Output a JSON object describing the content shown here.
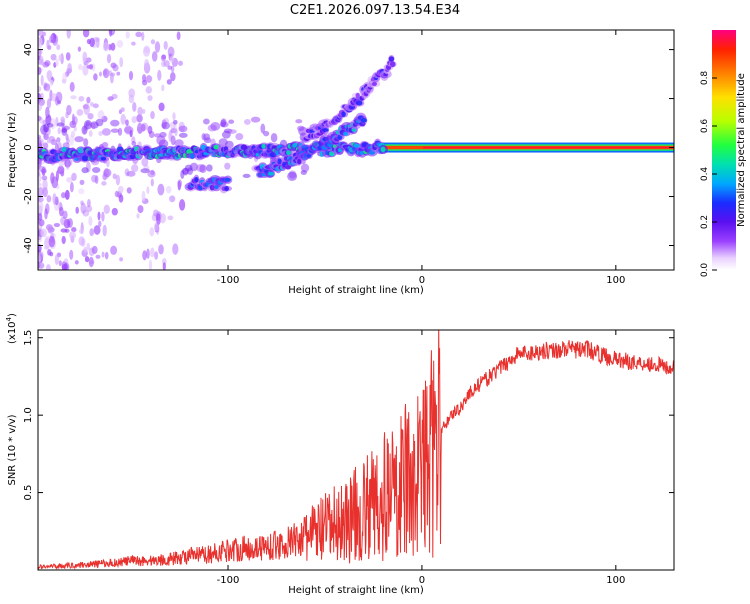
{
  "title": "C2E1.2026.097.13.54.E34",
  "chart_data": [
    {
      "type": "heatmap",
      "name": "spectrogram",
      "xlabel": "Height of straight line (km)",
      "ylabel": "Frequency (Hz)",
      "xlim": [
        -198,
        130
      ],
      "ylim": [
        -50,
        48
      ],
      "xticks": [
        -100,
        0,
        100
      ],
      "yticks": [
        -40,
        -20,
        0,
        20,
        40
      ],
      "colorbar": {
        "label": "Normalized spectral amplitude",
        "range": [
          0,
          1
        ],
        "ticks": [
          0.0,
          0.2,
          0.4,
          0.6,
          0.8
        ],
        "tick_labels": [
          "0.0",
          "0.2",
          "0.4",
          "0.6",
          "0.8"
        ]
      },
      "features": [
        {
          "name": "carrier-line",
          "x": [
            -20,
            130
          ],
          "y": 0,
          "amplitude": 0.95
        },
        {
          "name": "main-branch",
          "x": [
            -198,
            -20
          ],
          "y": [
            -3,
            0
          ],
          "amplitude": 0.35
        },
        {
          "name": "rising-branch-upper",
          "x": [
            -60,
            -15
          ],
          "y": [
            5,
            35
          ],
          "amplitude": 0.2
        },
        {
          "name": "rising-branch-lower",
          "x": [
            -85,
            -30
          ],
          "y": [
            -10,
            12
          ],
          "amplitude": 0.3
        },
        {
          "name": "low-branch",
          "x": [
            -120,
            -100
          ],
          "y": -15,
          "amplitude": 0.25
        }
      ]
    },
    {
      "type": "line",
      "name": "snr",
      "xlabel": "Height of straight line (km)",
      "ylabel": "SNR (10 * v/v)",
      "y_multiplier": "(x10",
      "y_multiplier_exp": "4",
      "y_multiplier_close": ")",
      "xlim": [
        -198,
        130
      ],
      "ylim": [
        0,
        15500
      ],
      "xticks": [
        -100,
        0,
        100
      ],
      "yticks": [
        5000,
        10000,
        15000
      ],
      "ytick_labels": [
        "0.5",
        "1.0",
        "1.5"
      ],
      "color": "#e8302d",
      "series": [
        {
          "name": "SNR",
          "x": [
            -198,
            -180,
            -160,
            -150,
            -140,
            -130,
            -120,
            -110,
            -100,
            -90,
            -80,
            -70,
            -60,
            -50,
            -40,
            -30,
            -25,
            -20,
            -15,
            -10,
            -5,
            0,
            5,
            10,
            15,
            20,
            25,
            30,
            35,
            40,
            45,
            50,
            55,
            60,
            65,
            70,
            75,
            80,
            85,
            90,
            95,
            100,
            110,
            120,
            130
          ],
          "y": [
            200,
            300,
            450,
            600,
            600,
            700,
            900,
            1000,
            1300,
            1400,
            1500,
            1700,
            2200,
            2600,
            3200,
            3800,
            4200,
            4800,
            5000,
            5500,
            6000,
            6500,
            7500,
            9000,
            10000,
            10500,
            11500,
            12000,
            12500,
            13000,
            13500,
            14000,
            14000,
            14100,
            14200,
            14200,
            14300,
            14200,
            14300,
            14000,
            13800,
            13600,
            13400,
            13300,
            13000
          ]
        }
      ]
    }
  ]
}
